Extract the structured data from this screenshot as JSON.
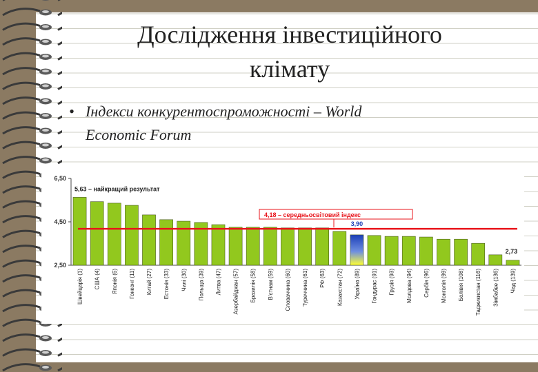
{
  "title": [
    "Дослідження інвестиційного",
    "клімату"
  ],
  "bullet": [
    "Індекси конкурентоспроможності – World",
    "Economic Forum"
  ],
  "chart_data": {
    "type": "bar",
    "categories": [
      "Швейцарія (1)",
      "США (4)",
      "Японія (6)",
      "Гонконг (11)",
      "Китай (27)",
      "Естонія (33)",
      "Чилі (30)",
      "Польща (39)",
      "Литва (47)",
      "Азербайджан (57)",
      "Бразилія (58)",
      "В'єтнам (59)",
      "Словаччина (60)",
      "Туреччина (61)",
      "РФ (63)",
      "Казахстан (72)",
      "Україна (89)",
      "Гондурас (91)",
      "Грузія (93)",
      "Молдова (94)",
      "Сербія (96)",
      "Монголія (99)",
      "Болівія (108)",
      "Таджикистан (116)",
      "Зімбабве (136)",
      "Чад (139)"
    ],
    "values": [
      5.63,
      5.43,
      5.36,
      5.26,
      4.82,
      4.6,
      4.53,
      4.47,
      4.37,
      4.25,
      4.25,
      4.25,
      4.22,
      4.22,
      4.22,
      4.06,
      3.9,
      3.87,
      3.83,
      3.83,
      3.8,
      3.7,
      3.7,
      3.51,
      2.98,
      2.73
    ],
    "color": "#92c81e",
    "highlight_color": "#1c3fb8",
    "reference_color": "#e8141b",
    "reference_line": 4.18,
    "annotations": [
      "5,63 – найкращий результат",
      "4,18 – середньосвітовий індекс",
      "3,90",
      "2,73"
    ],
    "ylim": [
      2.5,
      6.5
    ],
    "yticks": [
      {
        "value": 2.5,
        "label": "2,50"
      },
      {
        "value": 4.5,
        "label": "4,50"
      },
      {
        "value": 6.5,
        "label": "6,50"
      }
    ]
  }
}
